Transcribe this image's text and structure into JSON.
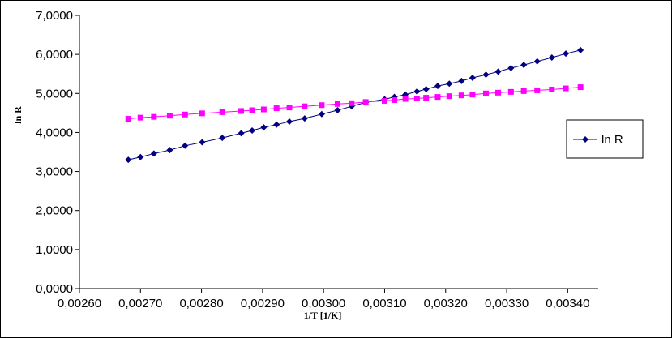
{
  "chart_data": {
    "type": "scatter",
    "title": "",
    "xlabel": "1/T [1/K]",
    "ylabel": "ln R",
    "xlim": [
      0.0026,
      0.00345
    ],
    "ylim": [
      0,
      7
    ],
    "x_ticks": [
      0.0026,
      0.0027,
      0.0028,
      0.0029,
      0.003,
      0.0031,
      0.0032,
      0.0033,
      0.0034
    ],
    "x_tick_labels": [
      "0,00260",
      "0,00270",
      "0,00280",
      "0,00290",
      "0,00300",
      "0,00310",
      "0,00320",
      "0,00330",
      "0,00340"
    ],
    "y_ticks": [
      0,
      1,
      2,
      3,
      4,
      5,
      6,
      7
    ],
    "y_tick_labels": [
      "0,0000",
      "1,0000",
      "2,0000",
      "3,0000",
      "4,0000",
      "5,0000",
      "6,0000",
      "7,0000"
    ],
    "grid": false,
    "legend_position": "right",
    "series": [
      {
        "name": "ln R",
        "marker": "diamond",
        "color": "#000080",
        "x": [
          0.00268,
          0.0027,
          0.002722,
          0.002748,
          0.002773,
          0.002801,
          0.002834,
          0.002865,
          0.002883,
          0.002902,
          0.002923,
          0.002944,
          0.002969,
          0.002997,
          0.003023,
          0.003046,
          0.003069,
          0.0031,
          0.003116,
          0.003134,
          0.003153,
          0.003168,
          0.003187,
          0.003206,
          0.003226,
          0.003244,
          0.003266,
          0.003286,
          0.003307,
          0.003328,
          0.00335,
          0.003374,
          0.003397,
          0.003421
        ],
        "y": [
          3.3,
          3.37,
          3.46,
          3.55,
          3.66,
          3.75,
          3.86,
          3.98,
          4.05,
          4.13,
          4.2,
          4.28,
          4.36,
          4.47,
          4.57,
          4.67,
          4.77,
          4.85,
          4.91,
          4.97,
          5.05,
          5.11,
          5.19,
          5.25,
          5.32,
          5.4,
          5.48,
          5.56,
          5.65,
          5.73,
          5.82,
          5.92,
          6.02,
          6.11
        ]
      },
      {
        "name": "",
        "marker": "square",
        "color": "#ff00ff",
        "x": [
          0.00268,
          0.0027,
          0.002722,
          0.002748,
          0.002773,
          0.002801,
          0.002834,
          0.002865,
          0.002883,
          0.002902,
          0.002923,
          0.002944,
          0.002969,
          0.002997,
          0.003023,
          0.003046,
          0.003069,
          0.0031,
          0.003116,
          0.003134,
          0.003153,
          0.003168,
          0.003187,
          0.003206,
          0.003226,
          0.003244,
          0.003266,
          0.003286,
          0.003307,
          0.003328,
          0.00335,
          0.003374,
          0.003397,
          0.003421
        ],
        "y": [
          4.35,
          4.38,
          4.4,
          4.43,
          4.46,
          4.49,
          4.52,
          4.55,
          4.57,
          4.59,
          4.62,
          4.64,
          4.67,
          4.7,
          4.73,
          4.75,
          4.78,
          4.81,
          4.83,
          4.86,
          4.87,
          4.89,
          4.91,
          4.93,
          4.95,
          4.97,
          5.0,
          5.02,
          5.04,
          5.06,
          5.08,
          5.1,
          5.13,
          5.16
        ]
      }
    ],
    "legend_entries": [
      "ln R"
    ]
  }
}
